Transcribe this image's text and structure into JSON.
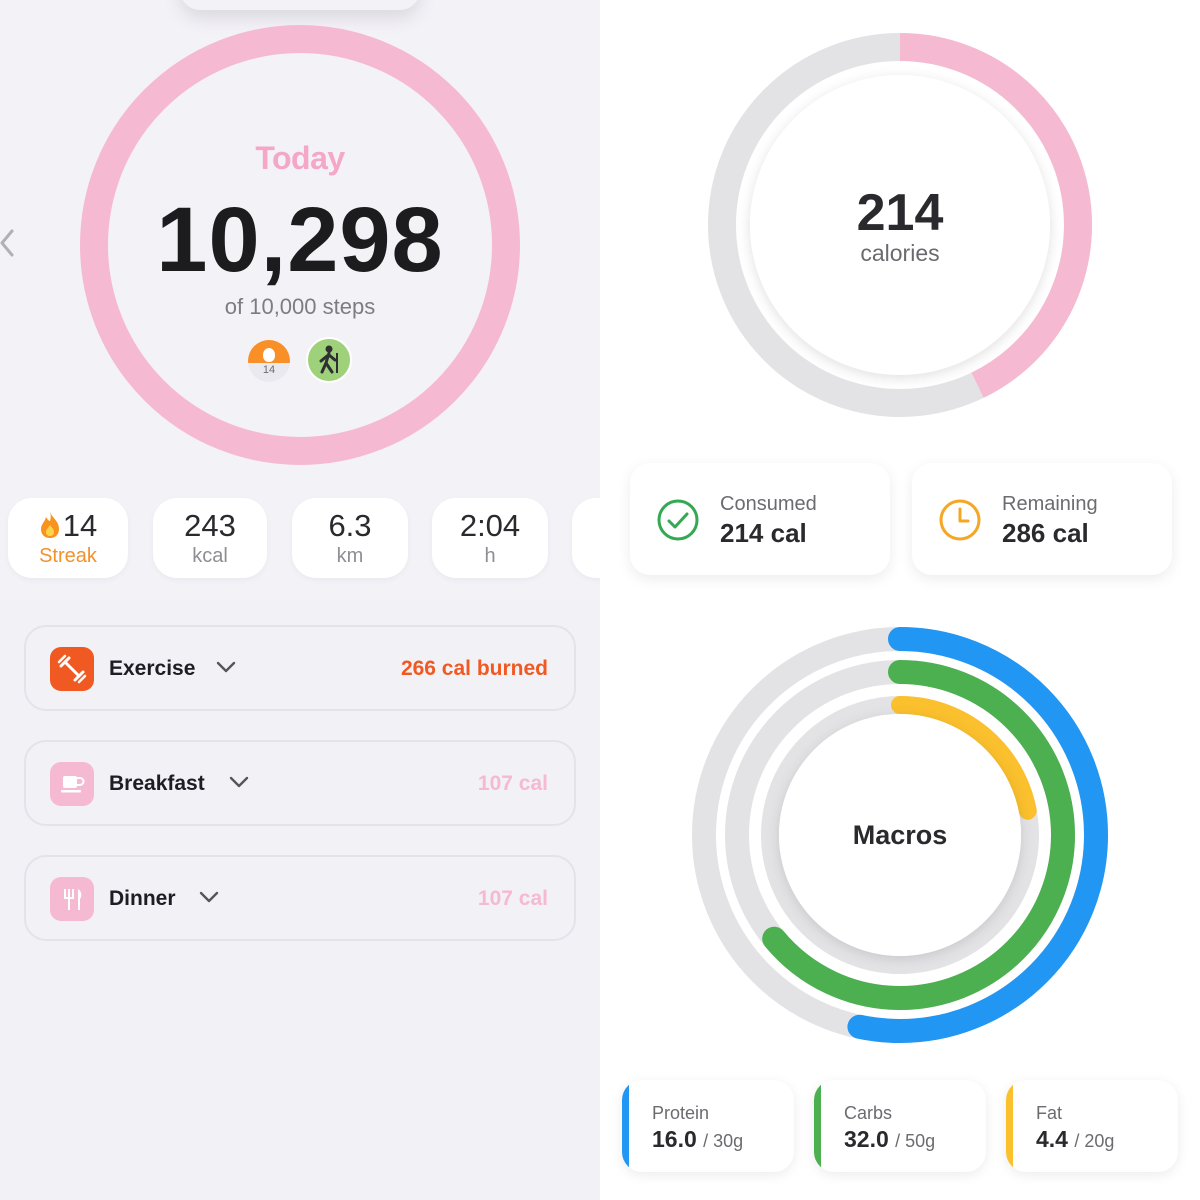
{
  "steps_screen": {
    "ring_label": "Today",
    "step_count": "10,298",
    "step_goal_text": "of 10,000 steps",
    "progress_fraction": 1.0,
    "streak_badge_number": "14",
    "stats": [
      {
        "value": "14",
        "label": "Streak"
      },
      {
        "value": "243",
        "label": "kcal"
      },
      {
        "value": "6.3",
        "label": "km"
      },
      {
        "value": "2:04",
        "label": "h"
      }
    ],
    "meals": [
      {
        "title": "Exercise",
        "amount": "266 cal burned",
        "icon": "dumbbell-icon",
        "color": "#f05a22"
      },
      {
        "title": "Breakfast",
        "amount": "107 cal",
        "icon": "coffee-cup-icon",
        "color": "#f6b9d2"
      },
      {
        "title": "Dinner",
        "amount": "107 cal",
        "icon": "fork-knife-icon",
        "color": "#f6b9d2"
      }
    ],
    "colors": {
      "pink": "#f6b9d2",
      "orange": "#f05a22",
      "streak_orange": "#f0922e"
    }
  },
  "calories_screen": {
    "calories_value": "214",
    "calories_label": "calories",
    "consumed_fraction": 0.428,
    "consumed": {
      "label": "Consumed",
      "value": "214 cal",
      "icon": "check-circle-icon",
      "color": "#34a853"
    },
    "remaining": {
      "label": "Remaining",
      "value": "286 cal",
      "icon": "clock-icon",
      "color": "#f5a623"
    },
    "macros_title": "Macros",
    "macros": [
      {
        "name": "Protein",
        "value": "16.0",
        "goal": "/ 30g",
        "fraction": 0.533,
        "color": "#2196f3"
      },
      {
        "name": "Carbs",
        "value": "32.0",
        "goal": "/ 50g",
        "fraction": 0.64,
        "color": "#4caf50"
      },
      {
        "name": "Fat",
        "value": "4.4",
        "goal": "/ 20g",
        "fraction": 0.22,
        "color": "#fbc02d"
      }
    ]
  }
}
